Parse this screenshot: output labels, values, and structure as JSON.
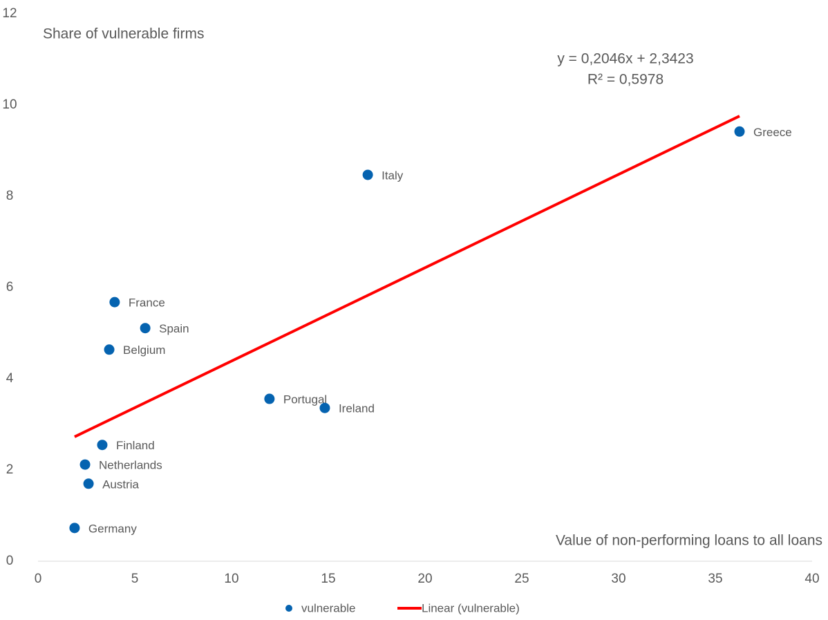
{
  "chart_data": {
    "type": "scatter",
    "y_label": "Share of vulnerable firms",
    "x_label": "Value of non-performing loans to all loans",
    "xlim": [
      0,
      40
    ],
    "xticks": [
      0,
      5,
      10,
      15,
      20,
      25,
      30,
      35,
      40
    ],
    "ylim": [
      0,
      12
    ],
    "yticks": [
      0,
      2,
      4,
      6,
      8,
      10,
      12
    ],
    "grid": false,
    "series": [
      {
        "name": "vulnerable",
        "color": "#0563b0",
        "labels": [
          "Greece",
          "Italy",
          "France",
          "Spain",
          "Belgium",
          "Portugal",
          "Ireland",
          "Finland",
          "Netherlands",
          "Austria",
          "Germany"
        ],
        "x": [
          36.25,
          17.04,
          3.96,
          5.54,
          3.68,
          11.96,
          14.82,
          3.32,
          2.43,
          2.61,
          1.89
        ],
        "values": [
          9.42,
          8.47,
          5.68,
          5.11,
          4.64,
          3.56,
          3.36,
          2.55,
          2.12,
          1.7,
          0.73
        ]
      }
    ],
    "trendline": {
      "name": "Linear (vulnerable)",
      "color": "#ff0000",
      "equation": "y = 0,2046x + 2,3423",
      "r_squared": "R² = 0,5978",
      "slope": 0.2046,
      "intercept": 2.3423
    }
  }
}
